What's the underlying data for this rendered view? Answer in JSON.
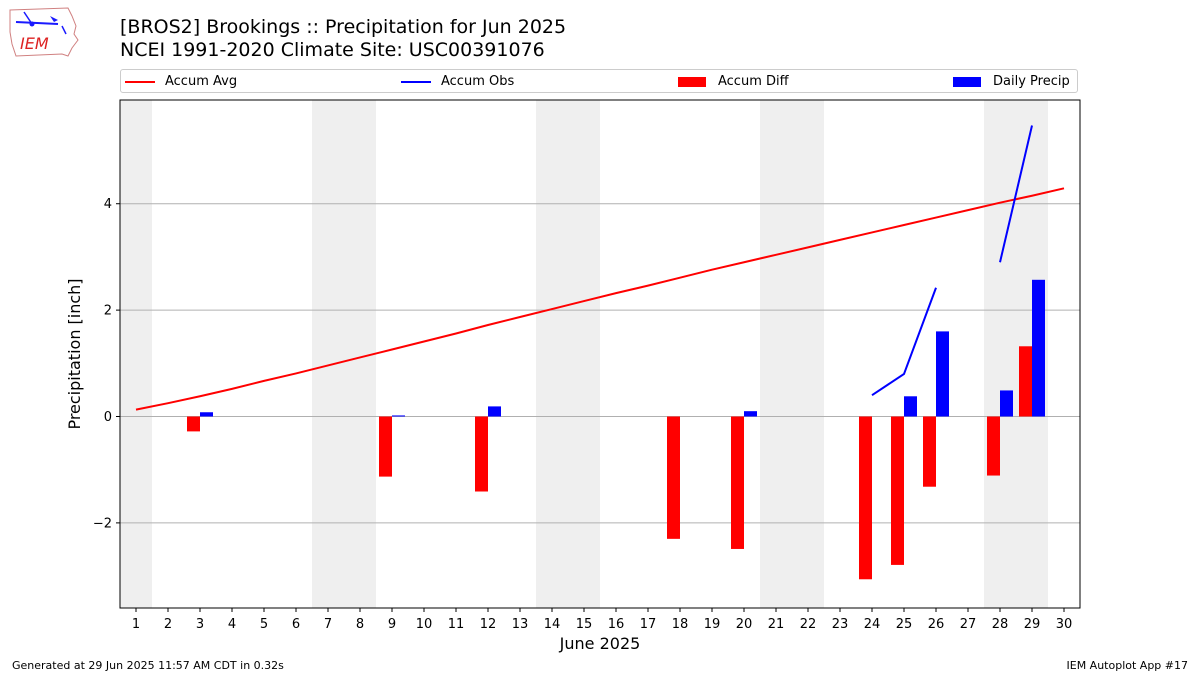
{
  "header": {
    "title_line1": "[BROS2] Brookings :: Precipitation for Jun 2025",
    "title_line2": "NCEI 1991-2020 Climate Site: USC00391076"
  },
  "logo": {
    "text": "IEM",
    "icon": "iem-iowa-logo-icon"
  },
  "footer": {
    "generated": "Generated at 29 Jun 2025 11:57 AM CDT in 0.32s",
    "app": "IEM Autoplot App #17"
  },
  "colors": {
    "avg": "#ff0000",
    "obs": "#0000ff",
    "diff": "#ff0000",
    "daily": "#0000ff",
    "weekend_shade": "#efefef",
    "grid": "#b0b0b0"
  },
  "chart_data": {
    "type": "bar",
    "xlabel": "June 2025",
    "ylabel": "Precipitation [inch]",
    "xlim": [
      0.5,
      30.5
    ],
    "ylim": [
      -3.6,
      5.95
    ],
    "x_ticks": [
      1,
      2,
      3,
      4,
      5,
      6,
      7,
      8,
      9,
      10,
      11,
      12,
      13,
      14,
      15,
      16,
      17,
      18,
      19,
      20,
      21,
      22,
      23,
      24,
      25,
      26,
      27,
      28,
      29,
      30
    ],
    "y_ticks": [
      -2,
      0,
      2,
      4
    ],
    "y_tick_labels": [
      "−2",
      "0",
      "2",
      "4"
    ],
    "grid": "horizontal",
    "legend": {
      "placement": "top",
      "entries": [
        "Accum Avg",
        "Accum Obs",
        "Accum Diff",
        "Daily Precip"
      ]
    },
    "shaded_days": [
      [
        1,
        1
      ],
      [
        7,
        8
      ],
      [
        14,
        15
      ],
      [
        21,
        22
      ],
      [
        28,
        29
      ]
    ],
    "series": [
      {
        "name": "Accum Avg",
        "kind": "line",
        "x": [
          1,
          2,
          3,
          4,
          5,
          6,
          7,
          8,
          9,
          10,
          11,
          12,
          13,
          14,
          15,
          16,
          17,
          18,
          19,
          20,
          21,
          22,
          23,
          24,
          25,
          26,
          27,
          28,
          29,
          30
        ],
        "values": [
          0.13,
          0.25,
          0.38,
          0.52,
          0.67,
          0.81,
          0.96,
          1.11,
          1.26,
          1.41,
          1.56,
          1.72,
          1.87,
          2.02,
          2.17,
          2.32,
          2.46,
          2.61,
          2.76,
          2.9,
          3.04,
          3.18,
          3.32,
          3.46,
          3.6,
          3.74,
          3.88,
          4.02,
          4.15,
          4.29
        ]
      },
      {
        "name": "Accum Obs",
        "kind": "line",
        "segments": [
          {
            "x": [
              24,
              25,
              26
            ],
            "values": [
              0.4,
              0.8,
              2.42
            ]
          },
          {
            "x": [
              28,
              29
            ],
            "values": [
              2.9,
              5.47
            ]
          }
        ]
      },
      {
        "name": "Accum Diff",
        "kind": "bar",
        "x": [
          3,
          9,
          12,
          18,
          20,
          24,
          25,
          26,
          28,
          29
        ],
        "values": [
          -0.28,
          -1.13,
          -1.41,
          -2.3,
          -2.49,
          -3.06,
          -2.79,
          -1.32,
          -1.11,
          1.32
        ]
      },
      {
        "name": "Daily Precip",
        "kind": "bar",
        "x": [
          3,
          9,
          12,
          20,
          25,
          26,
          28,
          29
        ],
        "values": [
          0.08,
          0.02,
          0.19,
          0.1,
          0.38,
          1.6,
          0.49,
          2.57
        ]
      }
    ]
  }
}
